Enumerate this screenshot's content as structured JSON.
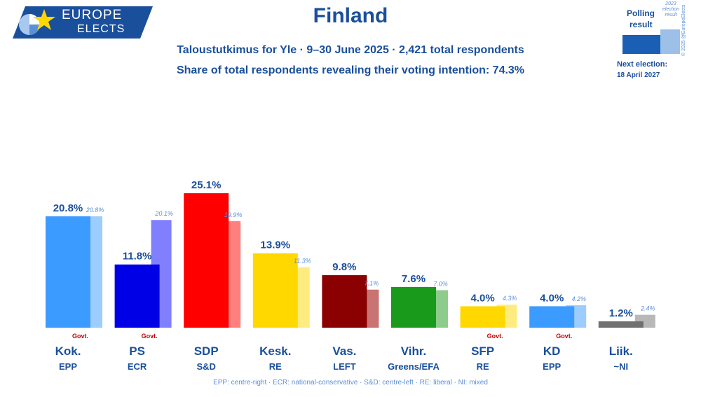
{
  "brand": {
    "line1": "EUROPE",
    "line2": "ELECTS"
  },
  "title": "Finland",
  "subtitle": "Taloustutkimus for Yle · 9–30 June 2025 · 2,421 total respondents",
  "subtitle2": "Share of total respondents revealing their voting intention: 74.3%",
  "legend": {
    "polling_label_1": "Polling",
    "polling_label_2": "result",
    "election_label": "2023 election result",
    "copyright": "© 2025 @EuropeElects",
    "next_election_label": "Next election:",
    "next_election_date": "18 April 2027"
  },
  "govt_label": "Govt.",
  "footnote": "EPP: centre-right · ECR: national-conservative · S&D: centre-left · RE: liberal · NI: mixed",
  "colors": {
    "accent": "#1a4f9c",
    "govt": "#c00000",
    "prev_label": "#5b8fd6"
  },
  "chart_data": {
    "type": "bar",
    "title": "Finland",
    "ylim": [
      0,
      26
    ],
    "grid": false,
    "categories": [
      "Kok.",
      "PS",
      "SDP",
      "Kesk.",
      "Vas.",
      "Vihr.",
      "SFP",
      "KD",
      "Liik."
    ],
    "groups": [
      "EPP",
      "ECR",
      "S&D",
      "RE",
      "LEFT",
      "Greens/EFA",
      "RE",
      "EPP",
      "~NI"
    ],
    "government": [
      true,
      true,
      false,
      false,
      false,
      false,
      true,
      true,
      false
    ],
    "colors": [
      "#3b9bff",
      "#0000e6",
      "#ff0000",
      "#ffd800",
      "#8b0000",
      "#1a9a1a",
      "#ffd800",
      "#3b9bff",
      "#707070"
    ],
    "prev_colors": [
      "#9dccff",
      "#8080ff",
      "#ff7f7f",
      "#ffec80",
      "#c97373",
      "#8dcc8d",
      "#ffec80",
      "#9dccff",
      "#b8b8b8"
    ],
    "series": [
      {
        "name": "Polling result",
        "values": [
          20.8,
          11.8,
          25.1,
          13.9,
          9.8,
          7.6,
          4.0,
          4.0,
          1.2
        ],
        "labels": [
          "20.8%",
          "11.8%",
          "25.1%",
          "13.9%",
          "9.8%",
          "7.6%",
          "4.0%",
          "4.0%",
          "1.2%"
        ]
      },
      {
        "name": "2023 election result",
        "values": [
          20.8,
          20.1,
          19.9,
          11.3,
          7.1,
          7.0,
          4.3,
          4.2,
          2.4
        ],
        "labels": [
          "20.8%",
          "20.1%",
          "19.9%",
          "11.3%",
          "7.1%",
          "7.0%",
          "4.3%",
          "4.2%",
          "2.4%"
        ]
      }
    ]
  }
}
